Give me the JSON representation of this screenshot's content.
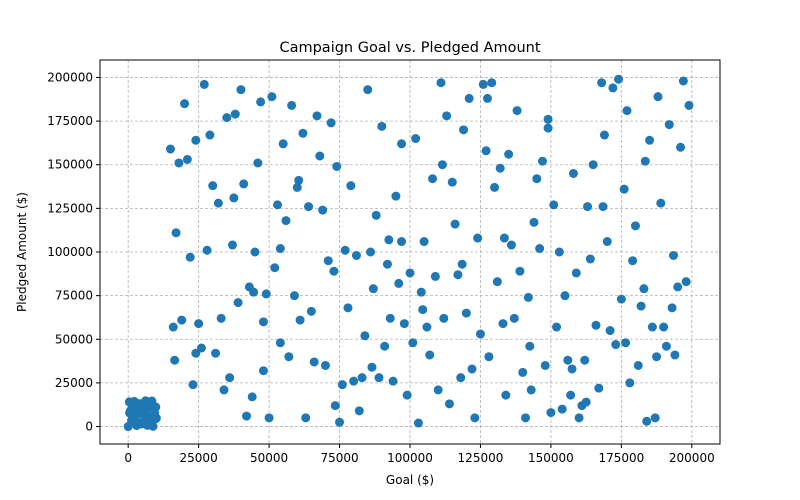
{
  "chart_data": {
    "type": "scatter",
    "title": "Campaign Goal vs. Pledged Amount",
    "xlabel": "Goal ($)",
    "ylabel": "Pledged Amount ($)",
    "xlim": [
      -10000,
      210000
    ],
    "ylim": [
      -10000,
      210000
    ],
    "x_ticks": [
      0,
      25000,
      50000,
      75000,
      100000,
      125000,
      150000,
      175000,
      200000
    ],
    "y_ticks": [
      0,
      25000,
      50000,
      75000,
      100000,
      125000,
      150000,
      175000,
      200000
    ],
    "grid": true,
    "marker_color": "#1f77b4",
    "series": [
      {
        "points": [
          [
            0,
            0
          ],
          [
            1200,
            3500
          ],
          [
            2400,
            8200
          ],
          [
            3600,
            12800
          ],
          [
            4800,
            1500
          ],
          [
            6000,
            6100
          ],
          [
            7200,
            10700
          ],
          [
            8400,
            14600
          ],
          [
            9600,
            4300
          ],
          [
            800,
            9100
          ],
          [
            2000,
            13400
          ],
          [
            3200,
            2700
          ],
          [
            4400,
            7300
          ],
          [
            5600,
            11900
          ],
          [
            6800,
            700
          ],
          [
            8000,
            5200
          ],
          [
            9200,
            9800
          ],
          [
            400,
            14100
          ],
          [
            1600,
            3900
          ],
          [
            2800,
            8500
          ],
          [
            4000,
            13100
          ],
          [
            5200,
            2300
          ],
          [
            6400,
            6900
          ],
          [
            7600,
            11500
          ],
          [
            8800,
            100
          ],
          [
            10000,
            4800
          ],
          [
            1400,
            12300
          ],
          [
            3000,
            600
          ],
          [
            4600,
            10000
          ],
          [
            6200,
            14800
          ],
          [
            7800,
            3000
          ],
          [
            9400,
            7600
          ],
          [
            1800,
            5500
          ],
          [
            5000,
            9400
          ],
          [
            8600,
            12600
          ],
          [
            3400,
            1200
          ],
          [
            7000,
            4600
          ],
          [
            2200,
            14400
          ],
          [
            9800,
            11200
          ],
          [
            500,
            7800
          ],
          [
            15000,
            159000
          ],
          [
            16000,
            57000
          ],
          [
            17000,
            111000
          ],
          [
            18000,
            151000
          ],
          [
            19000,
            61000
          ],
          [
            20000,
            185000
          ],
          [
            21000,
            153000
          ],
          [
            22000,
            97000
          ],
          [
            23000,
            24000
          ],
          [
            24000,
            164000
          ],
          [
            25000,
            59000
          ],
          [
            26000,
            45000
          ],
          [
            27000,
            196000
          ],
          [
            28000,
            101000
          ],
          [
            29000,
            167000
          ],
          [
            30000,
            138000
          ],
          [
            31000,
            42000
          ],
          [
            32000,
            128000
          ],
          [
            33000,
            62000
          ],
          [
            34000,
            21000
          ],
          [
            35000,
            177000
          ],
          [
            36000,
            28000
          ],
          [
            37000,
            104000
          ],
          [
            38000,
            179000
          ],
          [
            39000,
            71000
          ],
          [
            40000,
            193000
          ],
          [
            41000,
            139000
          ],
          [
            42000,
            6000
          ],
          [
            43000,
            80000
          ],
          [
            44000,
            17000
          ],
          [
            45000,
            100000
          ],
          [
            46000,
            151000
          ],
          [
            47000,
            186000
          ],
          [
            48000,
            32000
          ],
          [
            49000,
            76000
          ],
          [
            50000,
            5000
          ],
          [
            51000,
            189000
          ],
          [
            52000,
            91000
          ],
          [
            53000,
            127000
          ],
          [
            54000,
            48000
          ],
          [
            55000,
            162000
          ],
          [
            56000,
            118000
          ],
          [
            57000,
            40000
          ],
          [
            58000,
            184000
          ],
          [
            59000,
            75000
          ],
          [
            60000,
            137000
          ],
          [
            61000,
            61000
          ],
          [
            62000,
            168000
          ],
          [
            63000,
            5000
          ],
          [
            64000,
            126000
          ],
          [
            65000,
            66000
          ],
          [
            66000,
            37000
          ],
          [
            67000,
            178000
          ],
          [
            68000,
            155000
          ],
          [
            69000,
            124000
          ],
          [
            70000,
            35000
          ],
          [
            71000,
            95000
          ],
          [
            72000,
            174000
          ],
          [
            73000,
            89000
          ],
          [
            74000,
            149000
          ],
          [
            75000,
            2500
          ],
          [
            76000,
            24000
          ],
          [
            77000,
            101000
          ],
          [
            78000,
            68000
          ],
          [
            79000,
            138000
          ],
          [
            80000,
            26000
          ],
          [
            81000,
            98000
          ],
          [
            82000,
            9000
          ],
          [
            83000,
            28000
          ],
          [
            84000,
            52000
          ],
          [
            85000,
            193000
          ],
          [
            86000,
            100000
          ],
          [
            87000,
            79000
          ],
          [
            88000,
            121000
          ],
          [
            89000,
            28000
          ],
          [
            90000,
            172000
          ],
          [
            91000,
            46000
          ],
          [
            92000,
            93000
          ],
          [
            93000,
            62000
          ],
          [
            94000,
            26000
          ],
          [
            95000,
            132000
          ],
          [
            96000,
            82000
          ],
          [
            97000,
            106000
          ],
          [
            98000,
            59000
          ],
          [
            99000,
            18000
          ],
          [
            100000,
            88000
          ],
          [
            101000,
            48000
          ],
          [
            102000,
            165000
          ],
          [
            103000,
            2000
          ],
          [
            104000,
            77000
          ],
          [
            105000,
            106000
          ],
          [
            106000,
            57000
          ],
          [
            107000,
            41000
          ],
          [
            108000,
            142000
          ],
          [
            109000,
            86000
          ],
          [
            110000,
            21000
          ],
          [
            111000,
            197000
          ],
          [
            112000,
            62000
          ],
          [
            113000,
            178000
          ],
          [
            114000,
            13000
          ],
          [
            115000,
            140000
          ],
          [
            116000,
            116000
          ],
          [
            117000,
            87000
          ],
          [
            118000,
            28000
          ],
          [
            119000,
            170000
          ],
          [
            120000,
            65000
          ],
          [
            121000,
            188000
          ],
          [
            122000,
            33000
          ],
          [
            123000,
            5000
          ],
          [
            124000,
            108000
          ],
          [
            125000,
            53000
          ],
          [
            126000,
            196000
          ],
          [
            127000,
            158000
          ],
          [
            128000,
            40000
          ],
          [
            129000,
            197000
          ],
          [
            130000,
            137000
          ],
          [
            131000,
            83000
          ],
          [
            132000,
            148000
          ],
          [
            133000,
            59000
          ],
          [
            134000,
            18000
          ],
          [
            135000,
            156000
          ],
          [
            136000,
            104000
          ],
          [
            137000,
            62000
          ],
          [
            138000,
            181000
          ],
          [
            139000,
            89000
          ],
          [
            140000,
            31000
          ],
          [
            141000,
            5000
          ],
          [
            142000,
            74000
          ],
          [
            143000,
            21000
          ],
          [
            144000,
            117000
          ],
          [
            145000,
            142000
          ],
          [
            146000,
            102000
          ],
          [
            147000,
            152000
          ],
          [
            148000,
            35000
          ],
          [
            149000,
            171000
          ],
          [
            150000,
            8000
          ],
          [
            151000,
            127000
          ],
          [
            152000,
            57000
          ],
          [
            153000,
            100000
          ],
          [
            154000,
            10000
          ],
          [
            155000,
            75000
          ],
          [
            156000,
            38000
          ],
          [
            157000,
            18000
          ],
          [
            158000,
            145000
          ],
          [
            159000,
            88000
          ],
          [
            160000,
            5000
          ],
          [
            161000,
            12000
          ],
          [
            162000,
            38000
          ],
          [
            163000,
            126000
          ],
          [
            164000,
            96000
          ],
          [
            165000,
            150000
          ],
          [
            166000,
            58000
          ],
          [
            167000,
            22000
          ],
          [
            168000,
            197000
          ],
          [
            169000,
            167000
          ],
          [
            170000,
            106000
          ],
          [
            171000,
            55000
          ],
          [
            172000,
            194000
          ],
          [
            173000,
            47000
          ],
          [
            174000,
            199000
          ],
          [
            175000,
            73000
          ],
          [
            176000,
            136000
          ],
          [
            177000,
            181000
          ],
          [
            178000,
            25000
          ],
          [
            179000,
            95000
          ],
          [
            180000,
            115000
          ],
          [
            181000,
            35000
          ],
          [
            182000,
            69000
          ],
          [
            183000,
            79000
          ],
          [
            184000,
            3000
          ],
          [
            185000,
            164000
          ],
          [
            186000,
            57000
          ],
          [
            187000,
            5000
          ],
          [
            188000,
            189000
          ],
          [
            189000,
            128000
          ],
          [
            190000,
            57000
          ],
          [
            191000,
            46000
          ],
          [
            192000,
            173000
          ],
          [
            193000,
            68000
          ],
          [
            194000,
            41000
          ],
          [
            195000,
            80000
          ],
          [
            196000,
            160000
          ],
          [
            197000,
            198000
          ],
          [
            198000,
            83000
          ],
          [
            199000,
            184000
          ],
          [
            16500,
            38000
          ],
          [
            24000,
            42000
          ],
          [
            37500,
            131000
          ],
          [
            48000,
            60000
          ],
          [
            60500,
            141000
          ],
          [
            73500,
            12000
          ],
          [
            86500,
            34000
          ],
          [
            97000,
            162000
          ],
          [
            111500,
            150000
          ],
          [
            118500,
            93000
          ],
          [
            133500,
            108000
          ],
          [
            149000,
            176000
          ],
          [
            157500,
            33000
          ],
          [
            168500,
            126000
          ],
          [
            176500,
            48000
          ],
          [
            187500,
            40000
          ],
          [
            193500,
            98000
          ],
          [
            44500,
            77000
          ],
          [
            54000,
            102000
          ],
          [
            92500,
            107000
          ],
          [
            104500,
            67000
          ],
          [
            127500,
            188000
          ],
          [
            142500,
            46000
          ],
          [
            162500,
            14000
          ],
          [
            183500,
            152000
          ]
        ]
      }
    ]
  }
}
